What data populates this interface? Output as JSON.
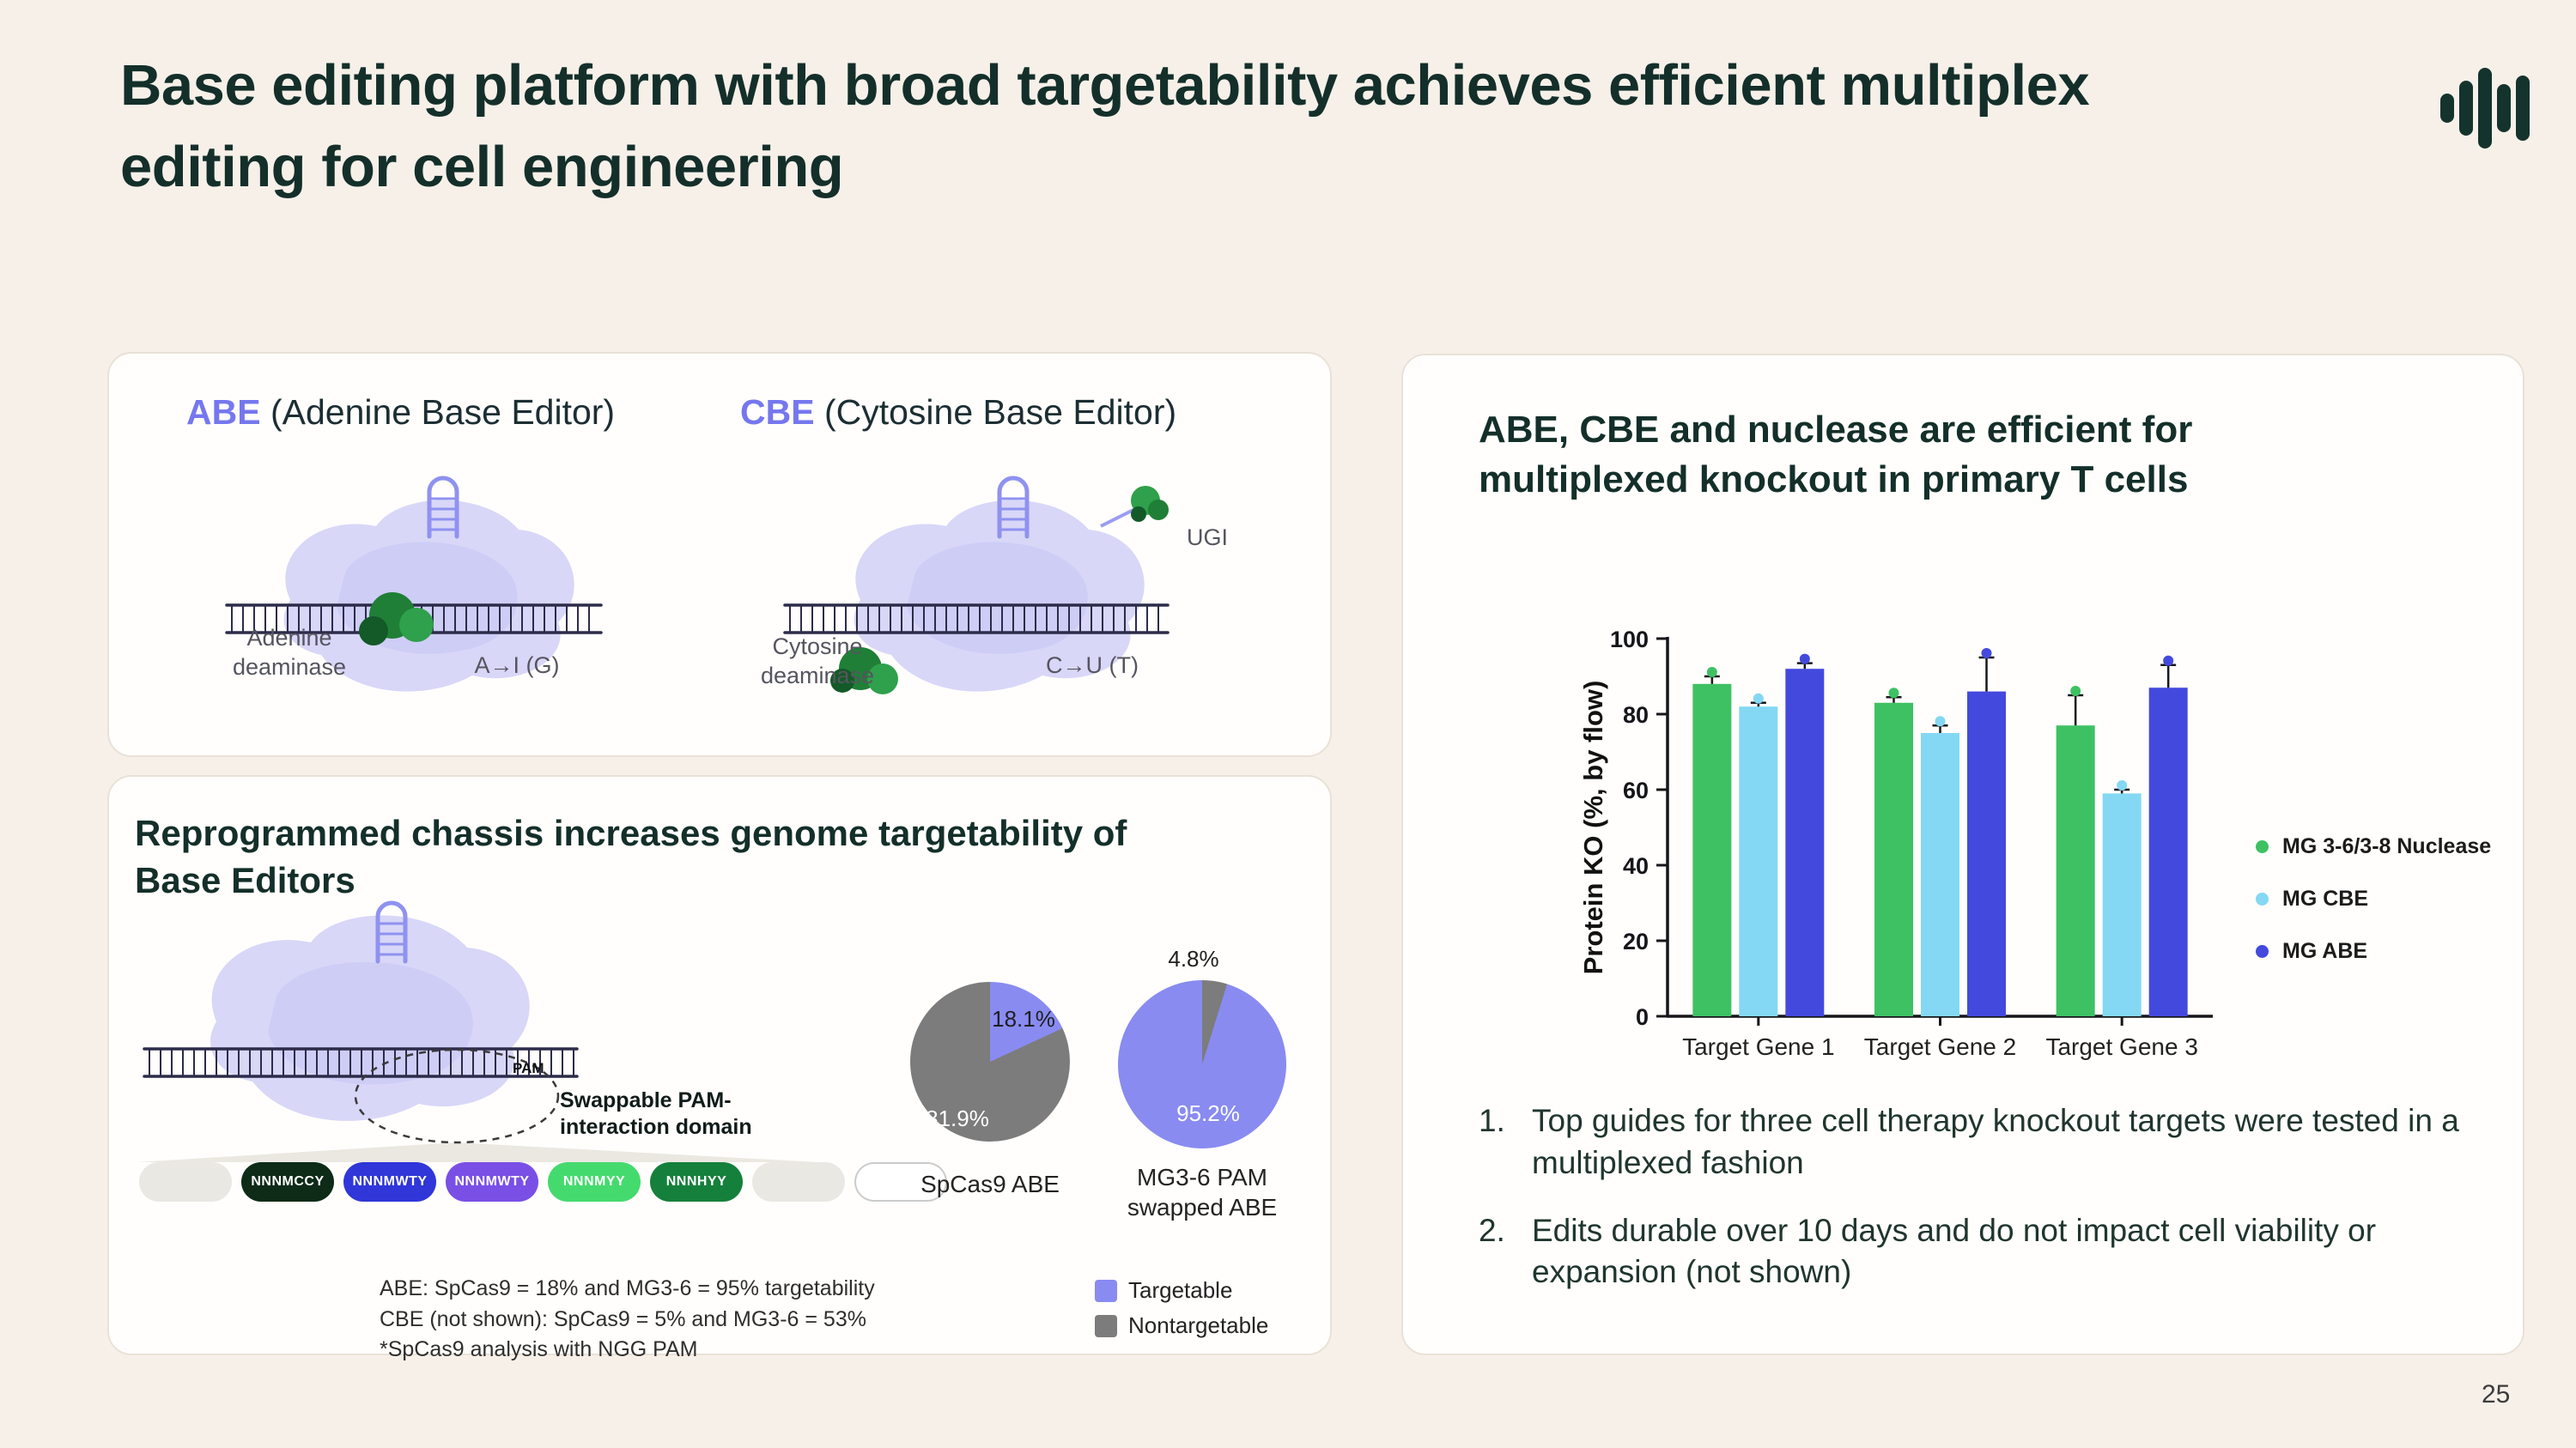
{
  "slide": {
    "title": "Base editing platform with broad targetability achieves efficient multiplex editing for cell engineering",
    "page_number": "25"
  },
  "editors_card": {
    "abe_abbr": "ABE",
    "abe_rest": " (Adenine Base Editor)",
    "cbe_abbr": "CBE",
    "cbe_rest": " (Cytosine Base Editor)",
    "abe_labels": {
      "deaminase": "Adenine deaminase",
      "conversion": "A→I (G)"
    },
    "cbe_labels": {
      "deaminase": "Cytosine deaminase",
      "conversion": "C→U (T)",
      "ugi": "UGI"
    }
  },
  "chassis_card": {
    "title": "Reprogrammed chassis increases genome targetability of Base Editors",
    "pam_label": "PAM",
    "swappable_label": "Swappable PAM-interaction domain",
    "pills": [
      {
        "label": "",
        "bg": "#e9e8e3",
        "fg": "#ffffff"
      },
      {
        "label": "NNNMCCY",
        "bg": "#0d2b17",
        "fg": "#ffffff"
      },
      {
        "label": "NNNMWTY",
        "bg": "#3036d8",
        "fg": "#ffffff"
      },
      {
        "label": "NNNMWTY",
        "bg": "#7a4fe6",
        "fg": "#ffffff"
      },
      {
        "label": "NNNMYY",
        "bg": "#45da6e",
        "fg": "#ffffff"
      },
      {
        "label": "NNNHYY",
        "bg": "#15803b",
        "fg": "#ffffff"
      },
      {
        "label": "",
        "bg": "#e9e8e3",
        "fg": "#ffffff"
      },
      {
        "label": "",
        "bg": "#ffffff",
        "fg": "#333333",
        "border": "#cccccc"
      }
    ],
    "legend": [
      {
        "label": "Targetable",
        "color": "#898bf1"
      },
      {
        "label": "Nontargetable",
        "color": "#7c7c7c"
      }
    ],
    "footnotes": [
      "ABE: SpCas9 = 18% and MG3-6 = 95% targetability",
      "CBE (not shown): SpCas9 = 5% and MG3-6 = 53%",
      "*SpCas9 analysis with NGG PAM"
    ]
  },
  "tcell_card": {
    "title": "ABE, CBE and nuclease are efficient for multiplexed knockout in primary T cells",
    "items": [
      {
        "num": "1.",
        "text": "Top guides for three cell therapy knockout targets were tested in a multiplexed fashion"
      },
      {
        "num": "2.",
        "text": "Edits durable over 10 days and do not impact cell viability or expansion (not shown)"
      }
    ]
  },
  "chart_data": [
    {
      "type": "bar",
      "title": "ABE, CBE and nuclease are efficient for multiplexed knockout in primary T cells",
      "categories": [
        "Target Gene 1",
        "Target Gene 2",
        "Target Gene 3"
      ],
      "series": [
        {
          "name": "MG 3-6/3-8 Nuclease",
          "color": "#3ec163",
          "values": [
            88,
            83,
            77
          ],
          "errors": [
            2,
            1.5,
            8
          ]
        },
        {
          "name": "MG CBE",
          "color": "#84d8f3",
          "values": [
            82,
            75,
            59
          ],
          "errors": [
            1,
            2,
            1
          ]
        },
        {
          "name": "MG ABE",
          "color": "#4449de",
          "values": [
            92,
            86,
            87
          ],
          "errors": [
            1.5,
            9,
            6
          ]
        }
      ],
      "xlabel": "",
      "ylabel": "Protein KO (%, by flow)",
      "ylim": [
        0,
        100
      ],
      "yticks": [
        0,
        20,
        40,
        60,
        80,
        100
      ],
      "legend_position": "right",
      "grid": false
    },
    {
      "type": "pie",
      "name": "SpCas9 ABE",
      "caption": "SpCas9 ABE",
      "slices": [
        {
          "label": "Targetable",
          "value": 18.1,
          "display": "18.1%",
          "color": "#898bf1"
        },
        {
          "label": "Nontargetable",
          "value": 81.9,
          "display": "81.9%",
          "color": "#7c7c7c"
        }
      ]
    },
    {
      "type": "pie",
      "name": "MG3-6 PAM swapped ABE",
      "caption": "MG3-6 PAM swapped ABE",
      "slices": [
        {
          "label": "Nontargetable",
          "value": 4.8,
          "display": "4.8%",
          "color": "#7c7c7c"
        },
        {
          "label": "Targetable",
          "value": 95.2,
          "display": "95.2%",
          "color": "#898bf1"
        }
      ]
    }
  ]
}
